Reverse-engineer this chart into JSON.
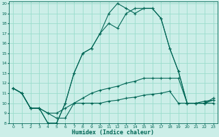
{
  "xlabel": "Humidex (Indice chaleur)",
  "bg_color": "#cceee8",
  "grid_color": "#99ddcc",
  "line_color": "#006655",
  "xlim": [
    -0.5,
    23.5
  ],
  "ylim": [
    8,
    20.2
  ],
  "xticks": [
    0,
    1,
    2,
    3,
    4,
    5,
    6,
    7,
    8,
    9,
    10,
    11,
    12,
    13,
    14,
    15,
    16,
    17,
    18,
    19,
    20,
    21,
    22,
    23
  ],
  "yticks": [
    8,
    9,
    10,
    11,
    12,
    13,
    14,
    15,
    16,
    17,
    18,
    19,
    20
  ],
  "series": [
    [
      11.5,
      11.0,
      9.5,
      9.5,
      9.0,
      8.5,
      8.5,
      10.0,
      10.0,
      10.0,
      10.0,
      10.2,
      10.3,
      10.5,
      10.6,
      10.8,
      10.9,
      11.0,
      11.2,
      10.0,
      10.0,
      10.0,
      10.2,
      10.3
    ],
    [
      11.5,
      11.0,
      9.5,
      9.5,
      9.0,
      9.0,
      9.5,
      10.0,
      10.5,
      11.0,
      11.3,
      11.5,
      11.7,
      12.0,
      12.2,
      12.5,
      12.5,
      12.5,
      12.5,
      12.5,
      10.0,
      10.0,
      10.0,
      10.3
    ],
    [
      11.5,
      11.0,
      9.5,
      9.5,
      8.0,
      8.0,
      10.0,
      13.0,
      15.0,
      15.5,
      17.0,
      18.0,
      17.5,
      19.0,
      19.5,
      19.5,
      19.5,
      18.5,
      15.5,
      13.2,
      10.0,
      10.0,
      10.0,
      10.0
    ],
    [
      11.5,
      11.0,
      9.5,
      9.5,
      8.0,
      8.0,
      10.0,
      13.0,
      15.0,
      15.5,
      17.0,
      19.0,
      20.0,
      19.5,
      19.0,
      19.5,
      19.5,
      18.5,
      15.5,
      13.2,
      10.0,
      10.0,
      10.0,
      10.5
    ]
  ]
}
